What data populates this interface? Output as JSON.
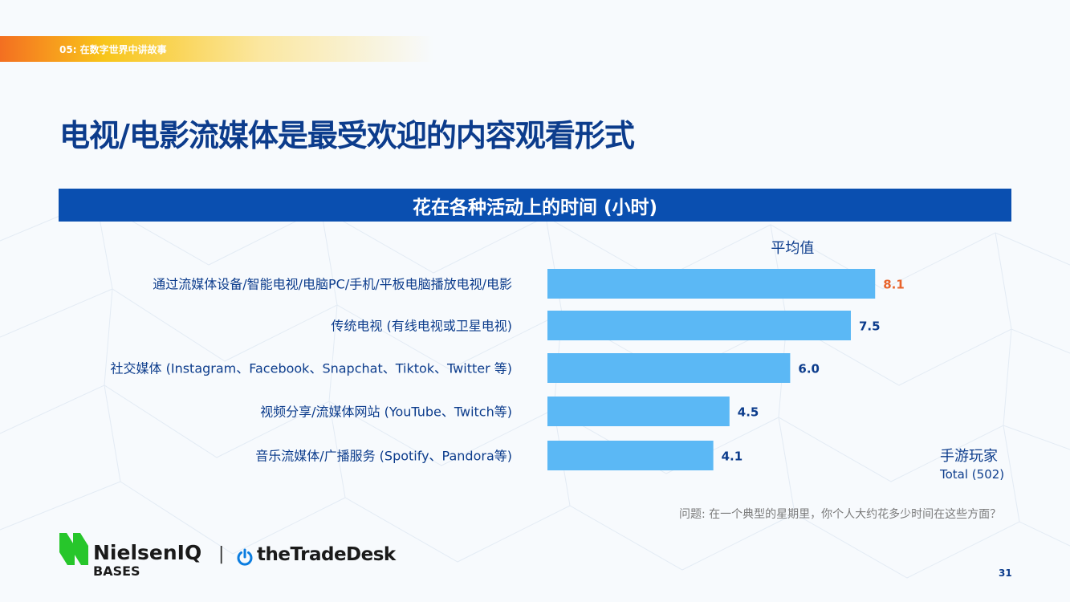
{
  "section_label": "05: 在数字世界中讲故事",
  "page_title": "电视/电影流媒体是最受欢迎的内容观看形式",
  "footnote": "问题: 在一个典型的星期里，你个人大约花多少时间在这些方面？",
  "page_number": "31",
  "logos": {
    "niq_name": "NielsenIQ",
    "niq_sub": "BASES",
    "separator": "|",
    "ttd_name": "theTradeDesk"
  },
  "colors": {
    "bar": "#5bb8f5",
    "header": "#0a4fb0",
    "title": "#0c3c8c",
    "highlight_value": "#e8632b",
    "average_line_top": "#f5c518",
    "average_line_bottom": "#f07f2e"
  },
  "chart_data": {
    "type": "bar",
    "orientation": "horizontal",
    "title": "花在各种活动上的时间 (小时)",
    "categories": [
      "通过流媒体设备/智能电视/电脑PC/手机/平板电脑播放电视/电影",
      "传统电视 (有线电视或卫星电视)",
      "社交媒体 (Instagram、Facebook、Snapchat、Tiktok、Twitter 等)",
      "视频分享/流媒体网站 (YouTube、Twitch等)",
      "音乐流媒体/广播服务 (Spotify、Pandora等)"
    ],
    "value_labels": [
      "8.1",
      "7.5",
      "6.0",
      "4.5",
      "4.1"
    ],
    "series": [
      {
        "values": [
          8.1,
          7.5,
          6.0,
          4.5,
          4.1
        ]
      }
    ],
    "average": {
      "label": "平均值",
      "value": 6.0
    },
    "legend": {
      "group": "手游玩家",
      "base": "Total (502)"
    },
    "xlim": [
      0,
      10
    ]
  }
}
